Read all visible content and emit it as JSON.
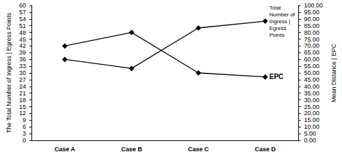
{
  "chart_data": {
    "type": "line",
    "categories": [
      "Case A",
      "Case B",
      "Case C",
      "Case D"
    ],
    "y_label": "The Total Number of Ingress | Egress Points",
    "y2_label": "Mean Distance | EPC",
    "ylim": [
      0,
      60
    ],
    "yticks": [
      0,
      3,
      6,
      9,
      12,
      15,
      18,
      21,
      24,
      27,
      30,
      33,
      36,
      39,
      42,
      45,
      48,
      51,
      54,
      57,
      60
    ],
    "y2lim": [
      0,
      100
    ],
    "y2ticks": [
      {
        "value": 0,
        "label": "0.00"
      },
      {
        "value": 5,
        "label": "5.00"
      },
      {
        "value": 10,
        "label": "10.00"
      },
      {
        "value": 15,
        "label": "15.00"
      },
      {
        "value": 20,
        "label": "20.00"
      },
      {
        "value": 25,
        "label": "25.00"
      },
      {
        "value": 30,
        "label": "30.00"
      },
      {
        "value": 35,
        "label": "35.00"
      },
      {
        "value": 40,
        "label": "40.00"
      },
      {
        "value": 45,
        "label": "45.00"
      },
      {
        "value": 50,
        "label": "50.00"
      },
      {
        "value": 55,
        "label": "55.00"
      },
      {
        "value": 60,
        "label": "60.00"
      },
      {
        "value": 65,
        "label": "65.00"
      },
      {
        "value": 70,
        "label": "70.00"
      },
      {
        "value": 75,
        "label": "75.00"
      },
      {
        "value": 80,
        "label": "80.00"
      },
      {
        "value": 85,
        "label": "85.00"
      },
      {
        "value": 90,
        "label": "90.00"
      },
      {
        "value": 95,
        "label": "95.00"
      },
      {
        "value": 100,
        "label": "100.00"
      }
    ],
    "grid": false,
    "series": [
      {
        "name": "Total Number of Ingress | Egress Points",
        "color": "#000000",
        "marker": "diamond",
        "values": [
          36,
          32,
          50,
          53
        ]
      },
      {
        "name": "EPC",
        "color": "#000000",
        "marker": "diamond",
        "axis": "y2",
        "values": [
          70,
          80,
          50,
          47
        ]
      }
    ]
  }
}
